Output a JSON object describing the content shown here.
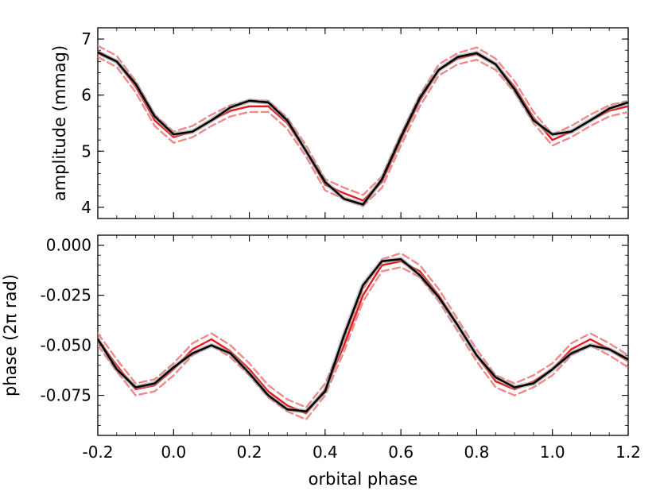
{
  "chart_data": [
    {
      "type": "line",
      "ylabel": "amplitude (mmag)",
      "xlabel": "",
      "xlim": [
        -0.2,
        1.2
      ],
      "ylim": [
        3.8,
        7.2
      ],
      "xticks": [
        -0.2,
        0.0,
        0.2,
        0.4,
        0.6,
        0.8,
        1.0,
        1.2
      ],
      "yticks": [
        4,
        5,
        6,
        7
      ],
      "ytick_labels": [
        "4",
        "5",
        "6",
        "7"
      ],
      "colors": {
        "observed": "#e8191b",
        "observed_bounds": "#f08a8a",
        "model": "#000000",
        "model_band": "#9a9a9a"
      },
      "x": [
        -0.2,
        -0.15,
        -0.1,
        -0.05,
        0.0,
        0.05,
        0.1,
        0.15,
        0.2,
        0.25,
        0.3,
        0.35,
        0.4,
        0.45,
        0.5,
        0.55,
        0.6,
        0.65,
        0.7,
        0.75,
        0.8,
        0.85,
        0.9,
        0.95,
        1.0,
        1.05,
        1.1,
        1.15,
        1.2
      ],
      "series": [
        {
          "values": [
            6.78,
            6.6,
            6.15,
            5.55,
            5.25,
            5.35,
            5.55,
            5.72,
            5.8,
            5.8,
            5.5,
            5.0,
            4.4,
            4.25,
            4.12,
            4.45,
            5.2,
            5.9,
            6.45,
            6.65,
            6.73,
            6.55,
            6.15,
            5.6,
            5.2,
            5.35,
            5.55,
            5.72,
            5.8
          ]
        },
        {
          "values": [
            6.88,
            6.7,
            6.25,
            5.65,
            5.35,
            5.45,
            5.65,
            5.82,
            5.9,
            5.9,
            5.6,
            5.1,
            4.5,
            4.35,
            4.22,
            4.55,
            5.3,
            6.0,
            6.55,
            6.75,
            6.85,
            6.65,
            6.25,
            5.7,
            5.3,
            5.45,
            5.65,
            5.82,
            5.9
          ]
        },
        {
          "values": [
            6.68,
            6.5,
            6.05,
            5.45,
            5.15,
            5.25,
            5.45,
            5.62,
            5.7,
            5.7,
            5.4,
            4.9,
            4.3,
            4.15,
            4.02,
            4.35,
            5.1,
            5.8,
            6.35,
            6.55,
            6.63,
            6.45,
            6.05,
            5.5,
            5.1,
            5.25,
            5.45,
            5.62,
            5.7
          ]
        },
        {
          "values": [
            6.76,
            6.6,
            6.2,
            5.62,
            5.3,
            5.35,
            5.55,
            5.78,
            5.9,
            5.87,
            5.55,
            5.0,
            4.45,
            4.15,
            4.05,
            4.5,
            5.25,
            5.95,
            6.45,
            6.68,
            6.75,
            6.55,
            6.1,
            5.55,
            5.3,
            5.35,
            5.55,
            5.76,
            5.87
          ]
        }
      ]
    },
    {
      "type": "line",
      "ylabel": "phase (2π rad)",
      "xlabel": "orbital phase",
      "xlim": [
        -0.2,
        1.2
      ],
      "ylim": [
        -0.095,
        0.005
      ],
      "xticks": [
        -0.2,
        0.0,
        0.2,
        0.4,
        0.6,
        0.8,
        1.0,
        1.2
      ],
      "xtick_labels": [
        "-0.2",
        "0.0",
        "0.2",
        "0.4",
        "0.6",
        "0.8",
        "1.0",
        "1.2"
      ],
      "yticks": [
        0.0,
        -0.025,
        -0.05,
        -0.075
      ],
      "ytick_labels": [
        "0.000",
        "-0.025",
        "-0.050",
        "-0.075"
      ],
      "colors": {
        "observed": "#e8191b",
        "observed_bounds": "#f08a8a",
        "model": "#000000",
        "model_band": "#9a9a9a"
      },
      "x": [
        -0.2,
        -0.15,
        -0.1,
        -0.05,
        0.0,
        0.05,
        0.1,
        0.15,
        0.2,
        0.25,
        0.3,
        0.35,
        0.4,
        0.45,
        0.5,
        0.55,
        0.6,
        0.65,
        0.7,
        0.75,
        0.8,
        0.85,
        0.9,
        0.95,
        1.0,
        1.05,
        1.1,
        1.15,
        1.2
      ],
      "series": [
        {
          "values": [
            -0.047,
            -0.06,
            -0.072,
            -0.07,
            -0.062,
            -0.052,
            -0.047,
            -0.053,
            -0.062,
            -0.073,
            -0.08,
            -0.084,
            -0.072,
            -0.05,
            -0.025,
            -0.01,
            -0.008,
            -0.013,
            -0.025,
            -0.04,
            -0.055,
            -0.068,
            -0.072,
            -0.068,
            -0.062,
            -0.052,
            -0.047,
            -0.052,
            -0.058
          ]
        },
        {
          "values": [
            -0.044,
            -0.057,
            -0.069,
            -0.067,
            -0.059,
            -0.049,
            -0.044,
            -0.05,
            -0.059,
            -0.07,
            -0.077,
            -0.081,
            -0.069,
            -0.047,
            -0.022,
            -0.007,
            -0.004,
            -0.01,
            -0.022,
            -0.037,
            -0.052,
            -0.065,
            -0.069,
            -0.065,
            -0.059,
            -0.049,
            -0.044,
            -0.049,
            -0.055
          ]
        },
        {
          "values": [
            -0.05,
            -0.063,
            -0.075,
            -0.073,
            -0.065,
            -0.055,
            -0.05,
            -0.056,
            -0.065,
            -0.076,
            -0.083,
            -0.087,
            -0.075,
            -0.053,
            -0.028,
            -0.013,
            -0.011,
            -0.016,
            -0.028,
            -0.043,
            -0.058,
            -0.071,
            -0.075,
            -0.071,
            -0.065,
            -0.055,
            -0.05,
            -0.055,
            -0.061
          ]
        },
        {
          "values": [
            -0.047,
            -0.062,
            -0.071,
            -0.069,
            -0.061,
            -0.054,
            -0.05,
            -0.054,
            -0.064,
            -0.075,
            -0.082,
            -0.083,
            -0.073,
            -0.045,
            -0.02,
            -0.008,
            -0.007,
            -0.015,
            -0.026,
            -0.04,
            -0.055,
            -0.066,
            -0.071,
            -0.069,
            -0.062,
            -0.054,
            -0.05,
            -0.052,
            -0.057
          ]
        }
      ]
    }
  ]
}
